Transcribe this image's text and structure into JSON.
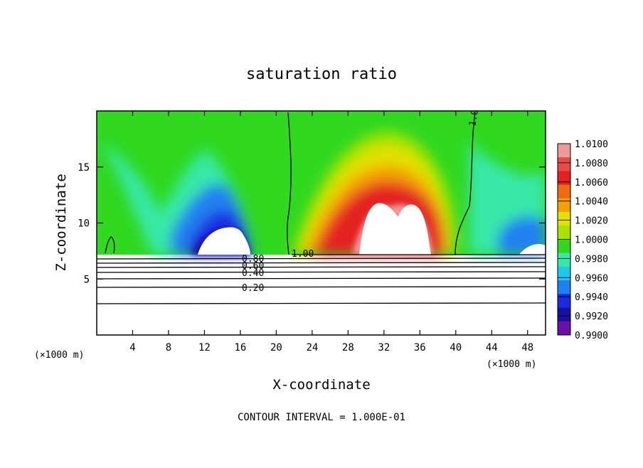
{
  "chart_data": {
    "type": "heatmap",
    "title": "saturation ratio",
    "xlabel": "X-coordinate",
    "ylabel": "Z-coordinate",
    "x_unit": "(×1000 m)",
    "z_unit": "(×1000 m)",
    "xlim": [
      0,
      50
    ],
    "ylim": [
      0,
      20
    ],
    "x_ticks": [
      4,
      8,
      12,
      16,
      20,
      24,
      28,
      32,
      36,
      40,
      44,
      48
    ],
    "y_ticks": [
      5,
      10,
      15
    ],
    "colorbar": {
      "min": 0.99,
      "max": 1.01,
      "labels": [
        "1.0100",
        "1.0080",
        "1.0060",
        "1.0040",
        "1.0020",
        "1.0000",
        "0.9980",
        "0.9960",
        "0.9940",
        "0.9920",
        "0.9900"
      ],
      "colors": [
        "#ef9a9a",
        "#e74a4a",
        "#e42020",
        "#f06a10",
        "#f4a000",
        "#e4e000",
        "#a8e400",
        "#30d820",
        "#38e8a8",
        "#20c8f0",
        "#2080f0",
        "#1a2ae0",
        "#1a10a0",
        "#6a10a8"
      ]
    },
    "contours": [
      {
        "value": "1.00"
      },
      {
        "value": "0.80"
      },
      {
        "value": "0.60"
      },
      {
        "value": "0.40"
      },
      {
        "value": "0.20"
      }
    ],
    "contour_interval": "CONTOUR INTERVAL = 1.000E-01"
  }
}
